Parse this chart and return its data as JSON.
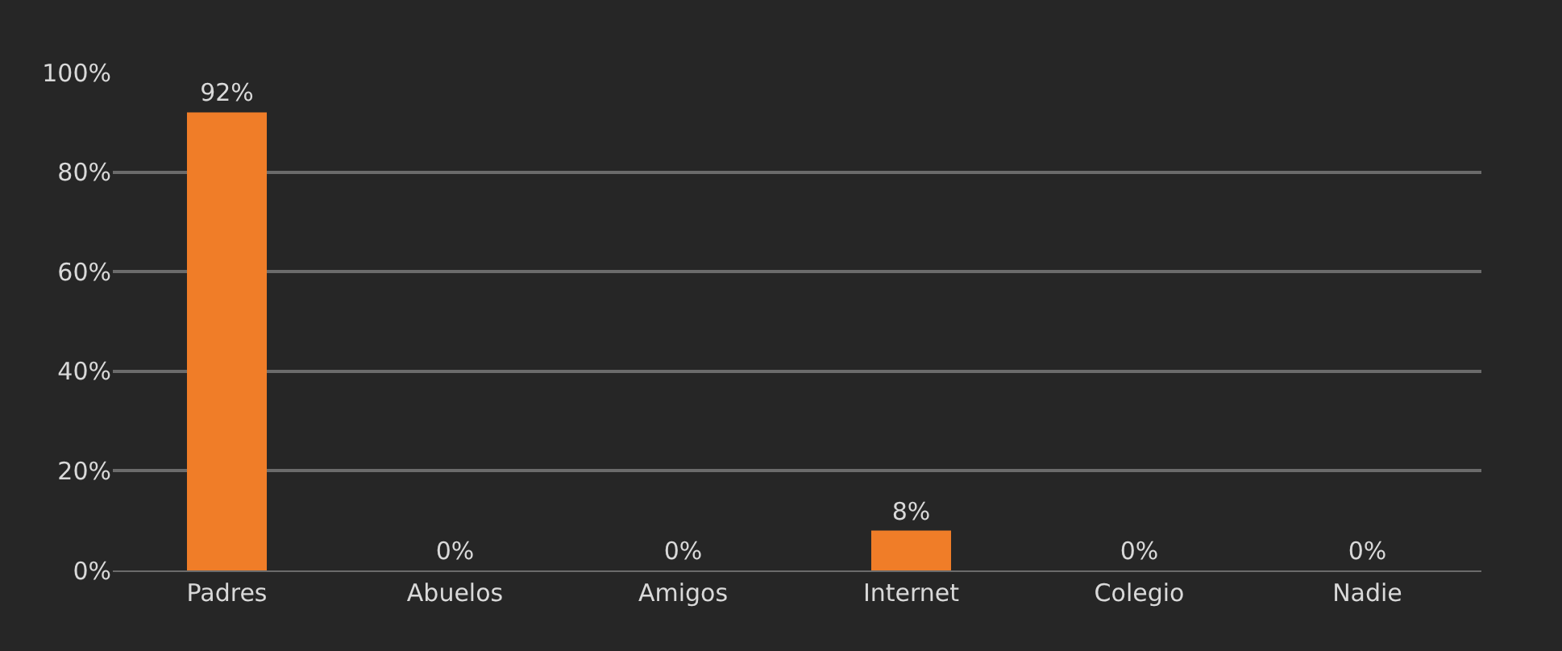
{
  "chart_data": {
    "type": "bar",
    "categories": [
      "Padres",
      "Abuelos",
      "Amigos",
      "Internet",
      "Colegio",
      "Nadie"
    ],
    "values": [
      92,
      0,
      0,
      8,
      0,
      0
    ],
    "value_labels": [
      "92%",
      "0%",
      "0%",
      "8%",
      "0%",
      "0%"
    ],
    "color": "#f07d28",
    "ylim": [
      0,
      100
    ],
    "yticks": [
      {
        "value": 0,
        "label": "0%"
      },
      {
        "value": 20,
        "label": "20%"
      },
      {
        "value": 40,
        "label": "40%"
      },
      {
        "value": 60,
        "label": "60%"
      },
      {
        "value": 80,
        "label": "80%"
      },
      {
        "value": 100,
        "label": "100%"
      }
    ],
    "grid": "y"
  }
}
